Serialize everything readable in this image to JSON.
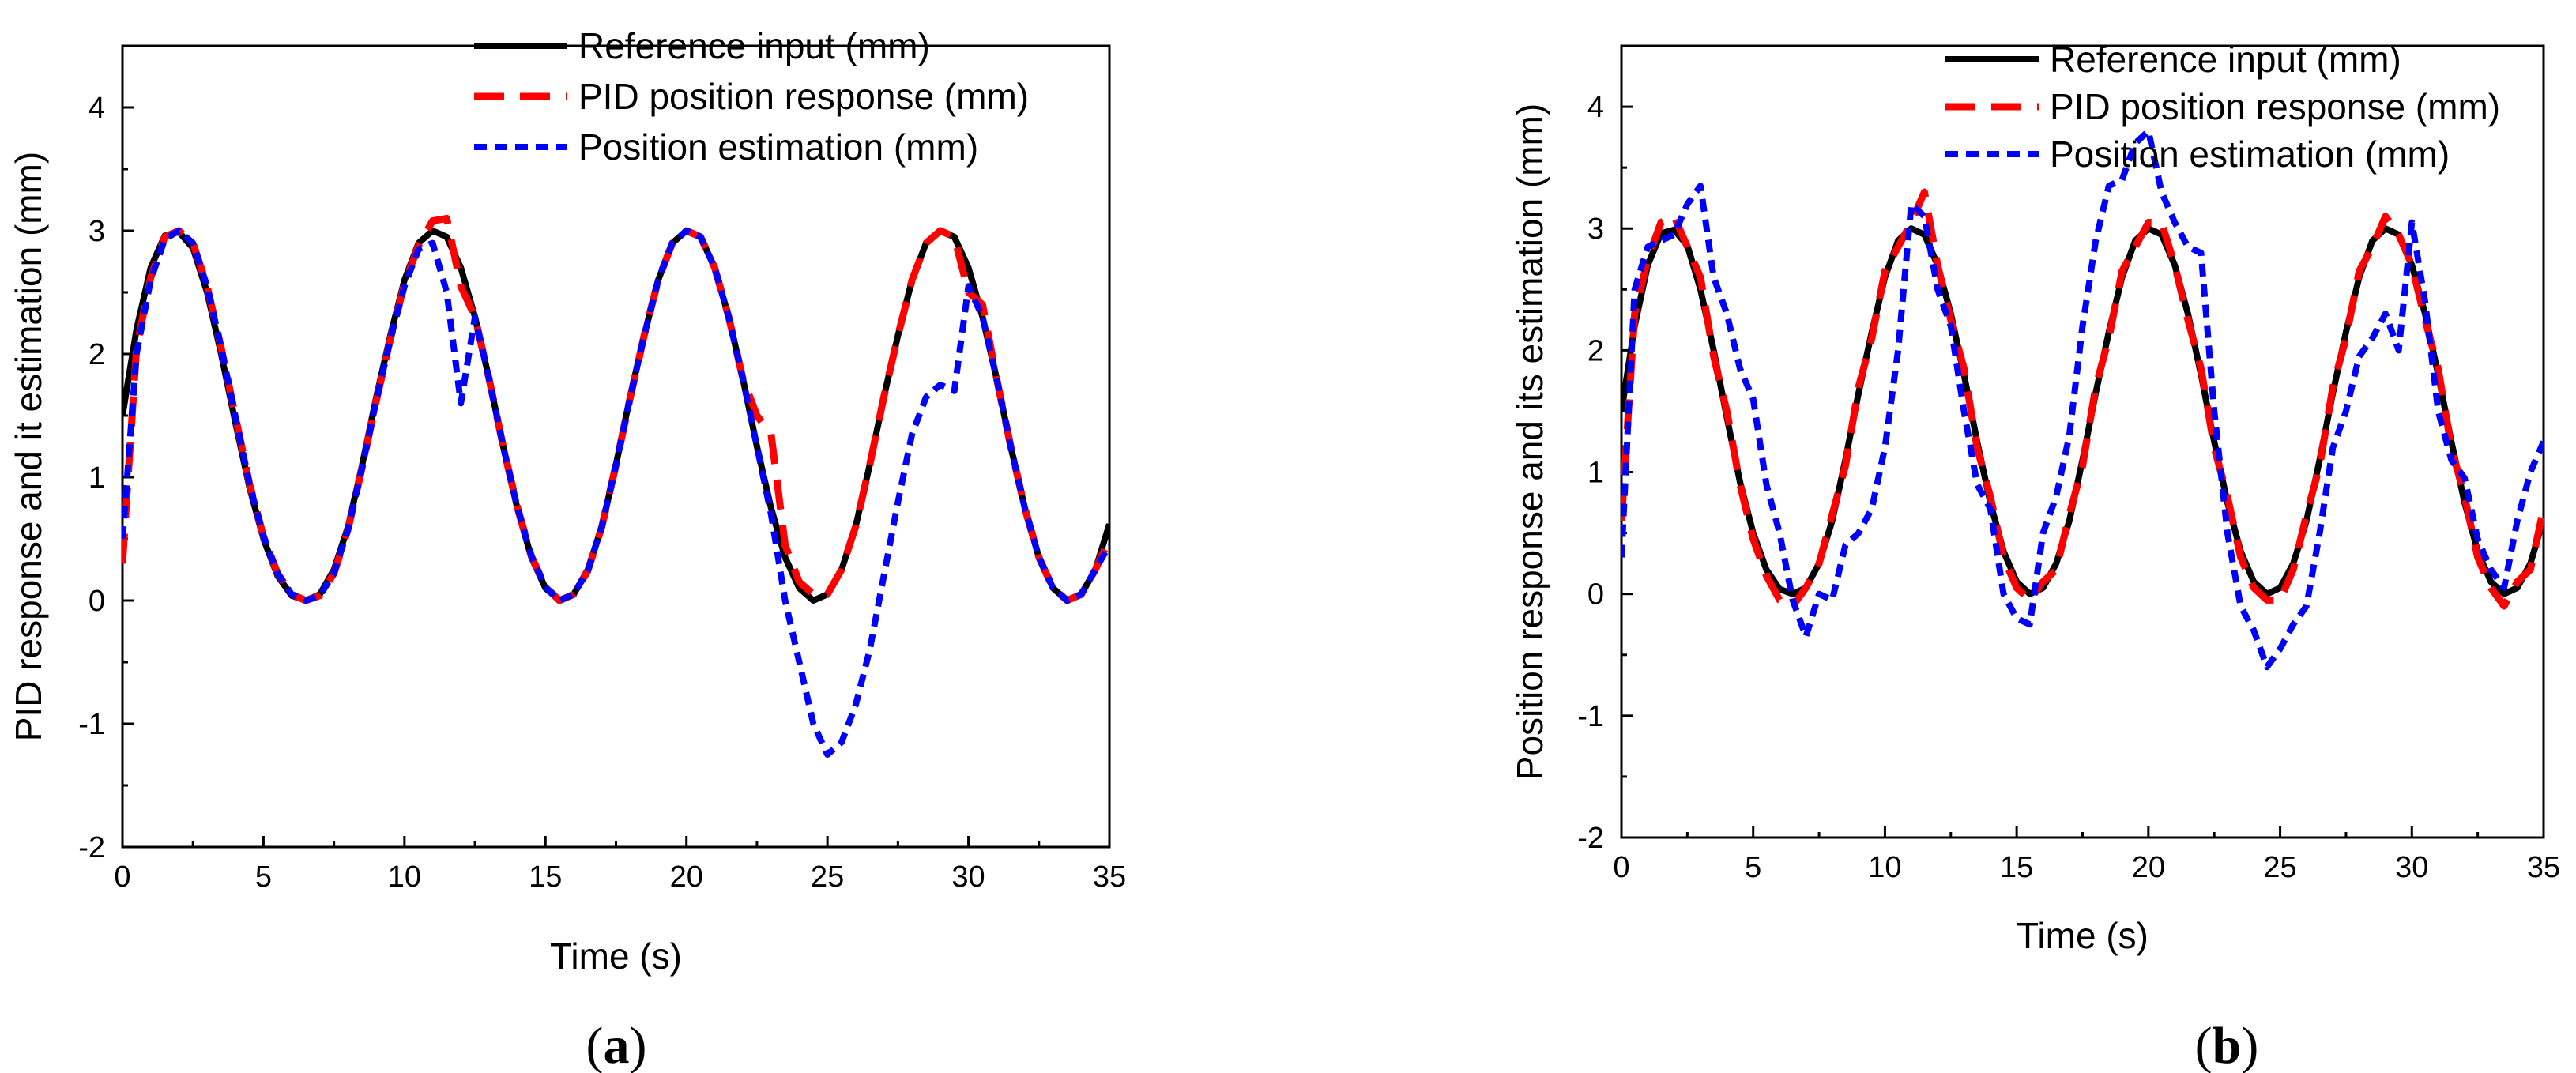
{
  "chart_data": [
    {
      "type": "line",
      "panel_label": "a",
      "caption": {
        "open": "(",
        "letter": "a",
        "close": ")"
      },
      "title": "",
      "xlabel": "Time (s)",
      "ylabel": "PID response and it estimation (mm)",
      "xlim": [
        0,
        35
      ],
      "ylim": [
        -2,
        4.5
      ],
      "xticks": [
        0,
        5,
        10,
        15,
        20,
        25,
        30,
        35
      ],
      "xtick_labels": [
        "0",
        "5",
        "10",
        "15",
        "20",
        "25",
        "30",
        "35"
      ],
      "yticks": [
        -2,
        -1,
        0,
        1,
        2,
        3,
        4
      ],
      "ytick_labels": [
        "-2",
        "-1",
        "0",
        "1",
        "2",
        "3",
        "4"
      ],
      "grid": false,
      "legend_position": "top-right",
      "series": [
        {
          "name": "Reference input (mm)",
          "color": "#000000",
          "style": "solid",
          "x": [
            0,
            0.5,
            1,
            1.5,
            2,
            2.5,
            3,
            3.5,
            4,
            4.5,
            5,
            5.5,
            6,
            6.5,
            7,
            7.5,
            8,
            8.5,
            9,
            9.5,
            10,
            10.5,
            11,
            11.5,
            12,
            12.5,
            13,
            13.5,
            14,
            14.5,
            15,
            15.5,
            16,
            16.5,
            17,
            17.5,
            18,
            18.5,
            19,
            19.5,
            20,
            20.5,
            21,
            21.5,
            22,
            22.5,
            23,
            23.5,
            24,
            24.5,
            25,
            25.5,
            26,
            26.5,
            27,
            27.5,
            28,
            28.5,
            29,
            29.5,
            30,
            30.5,
            31,
            31.5,
            32,
            32.5,
            33,
            33.5,
            34,
            34.5,
            35
          ],
          "values": [
            1.5,
            2.2,
            2.7,
            2.96,
            2.99,
            2.86,
            2.5,
            2.0,
            1.45,
            0.92,
            0.5,
            0.2,
            0.04,
            0.0,
            0.05,
            0.25,
            0.6,
            1.1,
            1.65,
            2.15,
            2.6,
            2.9,
            3.0,
            2.95,
            2.7,
            2.3,
            1.8,
            1.25,
            0.75,
            0.35,
            0.1,
            0.0,
            0.05,
            0.25,
            0.6,
            1.1,
            1.65,
            2.15,
            2.6,
            2.9,
            3.0,
            2.95,
            2.7,
            2.3,
            1.8,
            1.25,
            0.75,
            0.35,
            0.1,
            0.0,
            0.05,
            0.25,
            0.6,
            1.1,
            1.65,
            2.15,
            2.6,
            2.9,
            3.0,
            2.95,
            2.7,
            2.3,
            1.8,
            1.25,
            0.75,
            0.35,
            0.1,
            0.0,
            0.05,
            0.25,
            0.62
          ]
        },
        {
          "name": "PID position response (mm)",
          "color": "#ff0000",
          "style": "dash",
          "x": [
            0,
            0.5,
            1,
            1.5,
            2,
            2.5,
            3,
            3.5,
            4,
            4.5,
            5,
            5.5,
            6,
            6.5,
            7,
            7.5,
            8,
            8.5,
            9,
            9.5,
            10,
            10.5,
            11,
            11.5,
            12,
            12.5,
            13,
            13.5,
            14,
            14.5,
            15,
            15.5,
            16,
            16.5,
            17,
            17.5,
            18,
            18.5,
            19,
            19.5,
            20,
            20.5,
            21,
            21.5,
            22,
            22.5,
            23,
            23.5,
            24,
            24.5,
            25,
            25.5,
            26,
            26.5,
            27,
            27.5,
            28,
            28.5,
            29,
            29.5,
            30,
            30.5,
            31,
            31.5,
            32,
            32.5,
            33,
            33.5,
            34,
            34.5,
            35
          ],
          "values": [
            0.3,
            2.05,
            2.62,
            2.95,
            3.0,
            2.9,
            2.55,
            2.05,
            1.5,
            0.95,
            0.52,
            0.22,
            0.05,
            0.0,
            0.04,
            0.22,
            0.58,
            1.08,
            1.62,
            2.12,
            2.57,
            2.88,
            3.08,
            3.1,
            2.55,
            2.3,
            1.8,
            1.25,
            0.76,
            0.36,
            0.11,
            0.0,
            0.05,
            0.24,
            0.6,
            1.1,
            1.64,
            2.15,
            2.6,
            2.9,
            3.0,
            2.95,
            2.7,
            2.3,
            1.8,
            1.5,
            1.35,
            0.45,
            0.15,
            0.05,
            0.05,
            0.25,
            0.6,
            1.1,
            1.65,
            2.15,
            2.6,
            2.9,
            3.0,
            2.95,
            2.5,
            2.4,
            1.8,
            1.25,
            0.75,
            0.35,
            0.1,
            0.0,
            0.05,
            0.25,
            0.5
          ]
        },
        {
          "name": "Position estimation (mm)",
          "color": "#0000ff",
          "style": "dot",
          "x": [
            0,
            0.5,
            1,
            1.5,
            2,
            2.5,
            3,
            3.5,
            4,
            4.5,
            5,
            5.5,
            6,
            6.5,
            7,
            7.5,
            8,
            8.5,
            9,
            9.5,
            10,
            10.5,
            11,
            11.5,
            12,
            12.5,
            13,
            13.5,
            14,
            14.5,
            15,
            15.5,
            16,
            16.5,
            17,
            17.5,
            18,
            18.5,
            19,
            19.5,
            20,
            20.5,
            21,
            21.5,
            22,
            22.5,
            23,
            23.5,
            24,
            24.5,
            25,
            25.5,
            26,
            26.5,
            27,
            27.5,
            28,
            28.5,
            29,
            29.5,
            30,
            30.5,
            31,
            31.5,
            32,
            32.5,
            33,
            33.5,
            34,
            34.5,
            35
          ],
          "values": [
            0.5,
            2.0,
            2.6,
            2.93,
            3.0,
            2.9,
            2.55,
            2.05,
            1.5,
            0.95,
            0.52,
            0.22,
            0.05,
            0.0,
            0.04,
            0.22,
            0.58,
            1.08,
            1.62,
            2.12,
            2.55,
            2.85,
            2.9,
            2.5,
            1.6,
            2.3,
            1.8,
            1.25,
            0.76,
            0.36,
            0.11,
            0.0,
            0.05,
            0.24,
            0.6,
            1.1,
            1.64,
            2.15,
            2.6,
            2.9,
            3.0,
            2.95,
            2.7,
            2.3,
            1.8,
            1.25,
            0.7,
            0.0,
            -0.5,
            -1.0,
            -1.25,
            -1.15,
            -0.85,
            -0.4,
            0.2,
            0.8,
            1.35,
            1.65,
            1.75,
            1.7,
            2.55,
            2.3,
            1.8,
            1.25,
            0.75,
            0.35,
            0.1,
            0.0,
            0.05,
            0.25,
            0.45
          ]
        }
      ]
    },
    {
      "type": "line",
      "panel_label": "b",
      "caption": {
        "open": "(",
        "letter": "b",
        "close": ")"
      },
      "title": "",
      "xlabel": "Time (s)",
      "ylabel": "Position response and its estimation (mm)",
      "xlim": [
        0,
        35
      ],
      "ylim": [
        -2,
        4.5
      ],
      "xticks": [
        0,
        5,
        10,
        15,
        20,
        25,
        30,
        35
      ],
      "xtick_labels": [
        "0",
        "5",
        "10",
        "15",
        "20",
        "25",
        "30",
        "35"
      ],
      "yticks": [
        -2,
        -1,
        0,
        1,
        2,
        3,
        4
      ],
      "ytick_labels": [
        "-2",
        "-1",
        "0",
        "1",
        "2",
        "3",
        "4"
      ],
      "grid": false,
      "legend_position": "top-right",
      "series": [
        {
          "name": "Reference input (mm)",
          "color": "#000000",
          "style": "solid",
          "x": [
            0,
            0.5,
            1,
            1.5,
            2,
            2.5,
            3,
            3.5,
            4,
            4.5,
            5,
            5.5,
            6,
            6.5,
            7,
            7.5,
            8,
            8.5,
            9,
            9.5,
            10,
            10.5,
            11,
            11.5,
            12,
            12.5,
            13,
            13.5,
            14,
            14.5,
            15,
            15.5,
            16,
            16.5,
            17,
            17.5,
            18,
            18.5,
            19,
            19.5,
            20,
            20.5,
            21,
            21.5,
            22,
            22.5,
            23,
            23.5,
            24,
            24.5,
            25,
            25.5,
            26,
            26.5,
            27,
            27.5,
            28,
            28.5,
            29,
            29.5,
            30,
            30.5,
            31,
            31.5,
            32,
            32.5,
            33,
            33.5,
            34,
            34.5,
            35
          ],
          "values": [
            1.5,
            2.2,
            2.7,
            2.96,
            2.99,
            2.86,
            2.5,
            2.0,
            1.45,
            0.92,
            0.5,
            0.2,
            0.04,
            0.0,
            0.05,
            0.25,
            0.6,
            1.1,
            1.65,
            2.15,
            2.6,
            2.9,
            3.0,
            2.95,
            2.7,
            2.3,
            1.8,
            1.25,
            0.75,
            0.35,
            0.1,
            0.0,
            0.05,
            0.25,
            0.6,
            1.1,
            1.65,
            2.15,
            2.6,
            2.9,
            3.0,
            2.95,
            2.7,
            2.3,
            1.8,
            1.25,
            0.75,
            0.35,
            0.1,
            0.0,
            0.05,
            0.25,
            0.6,
            1.1,
            1.65,
            2.15,
            2.6,
            2.9,
            3.0,
            2.95,
            2.7,
            2.3,
            1.8,
            1.25,
            0.75,
            0.35,
            0.1,
            0.0,
            0.05,
            0.25,
            0.62
          ]
        },
        {
          "name": "PID position response (mm)",
          "color": "#ff0000",
          "style": "dash",
          "x": [
            0,
            0.5,
            1,
            1.5,
            2,
            2.5,
            3,
            3.5,
            4,
            4.5,
            5,
            5.5,
            6,
            6.5,
            7,
            7.5,
            8,
            8.5,
            9,
            9.5,
            10,
            10.5,
            11,
            11.5,
            12,
            12.5,
            13,
            13.5,
            14,
            14.5,
            15,
            15.5,
            16,
            16.5,
            17,
            17.5,
            18,
            18.5,
            19,
            19.5,
            20,
            20.5,
            21,
            21.5,
            22,
            22.5,
            23,
            23.5,
            24,
            24.5,
            25,
            25.5,
            26,
            26.5,
            27,
            27.5,
            28,
            28.5,
            29,
            29.5,
            30,
            30.5,
            31,
            31.5,
            32,
            32.5,
            33,
            33.5,
            34,
            34.5,
            35
          ],
          "values": [
            0.6,
            2.3,
            2.75,
            3.05,
            3.1,
            2.85,
            2.6,
            1.95,
            1.5,
            0.9,
            0.45,
            0.15,
            -0.05,
            -0.1,
            0.05,
            0.25,
            0.65,
            1.05,
            1.7,
            2.1,
            2.65,
            2.85,
            3.05,
            3.3,
            2.7,
            2.25,
            1.85,
            1.2,
            0.8,
            0.3,
            0.05,
            -0.05,
            0.1,
            0.2,
            0.65,
            1.05,
            1.7,
            2.1,
            2.65,
            2.85,
            3.05,
            3.05,
            2.7,
            2.25,
            1.85,
            1.2,
            0.8,
            0.3,
            0.05,
            -0.05,
            -0.05,
            0.2,
            0.65,
            1.05,
            1.7,
            2.1,
            2.65,
            2.85,
            3.1,
            2.95,
            2.7,
            2.25,
            1.85,
            1.2,
            0.8,
            0.3,
            0.05,
            -0.1,
            0.1,
            0.2,
            0.7
          ]
        },
        {
          "name": "Position estimation (mm)",
          "color": "#0000ff",
          "style": "dot",
          "x": [
            0,
            0.5,
            1,
            1.5,
            2,
            2.5,
            3,
            3.5,
            4,
            4.5,
            5,
            5.5,
            6,
            6.5,
            7,
            7.5,
            8,
            8.5,
            9,
            9.5,
            10,
            10.5,
            11,
            11.5,
            12,
            12.5,
            13,
            13.5,
            14,
            14.5,
            15,
            15.5,
            16,
            16.5,
            17,
            17.5,
            18,
            18.5,
            19,
            19.5,
            20,
            20.5,
            21,
            21.5,
            22,
            22.5,
            23,
            23.5,
            24,
            24.5,
            25,
            25.5,
            26,
            26.5,
            27,
            27.5,
            28,
            28.5,
            29,
            29.5,
            30,
            30.5,
            31,
            31.5,
            32,
            32.5,
            33,
            33.5,
            34,
            34.5,
            35
          ],
          "values": [
            0.3,
            2.5,
            2.85,
            2.9,
            2.95,
            3.2,
            3.35,
            2.6,
            2.3,
            1.85,
            1.6,
            0.9,
            0.5,
            -0.05,
            -0.35,
            0.0,
            -0.05,
            0.4,
            0.5,
            0.7,
            1.2,
            2.0,
            3.2,
            3.1,
            2.5,
            2.2,
            1.5,
            0.9,
            0.7,
            0.0,
            -0.2,
            -0.25,
            0.5,
            0.8,
            1.3,
            2.2,
            2.9,
            3.35,
            3.4,
            3.7,
            3.8,
            3.3,
            3.05,
            2.85,
            2.8,
            1.5,
            0.5,
            -0.1,
            -0.3,
            -0.6,
            -0.45,
            -0.25,
            -0.1,
            0.5,
            1.2,
            1.5,
            1.95,
            2.1,
            2.3,
            2.0,
            3.05,
            2.4,
            1.5,
            1.1,
            0.95,
            0.45,
            0.2,
            0.05,
            0.6,
            1.0,
            1.25
          ]
        }
      ]
    }
  ]
}
